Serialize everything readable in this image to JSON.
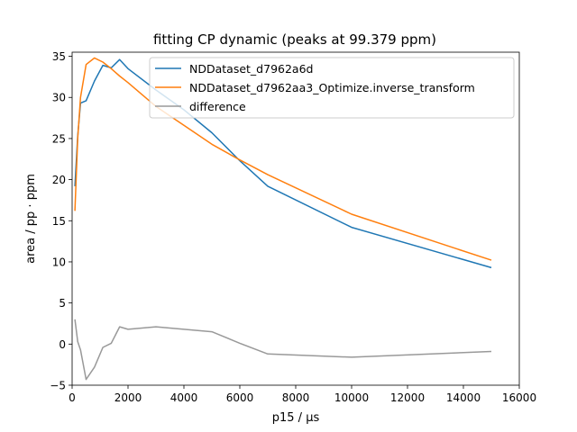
{
  "chart_data": {
    "type": "line",
    "title": "fitting CP dynamic (peaks at 99.379 ppm)",
    "xlabel": "p15 / µs",
    "ylabel": "area / pp · ppm",
    "xlim": [
      0,
      16000
    ],
    "ylim": [
      -5,
      35.5
    ],
    "xticks": [
      0,
      2000,
      4000,
      6000,
      8000,
      10000,
      12000,
      14000,
      16000
    ],
    "yticks": [
      -5,
      0,
      5,
      10,
      15,
      20,
      25,
      30,
      35
    ],
    "xtick_labels": [
      "0",
      "2000",
      "4000",
      "6000",
      "8000",
      "10000",
      "12000",
      "14000",
      "16000"
    ],
    "ytick_labels": [
      "−5",
      "0",
      "5",
      "10",
      "15",
      "20",
      "25",
      "30",
      "35"
    ],
    "grid": false,
    "legend_position": "top-right",
    "series": [
      {
        "name": "NDDataset_d7962a6d",
        "color": "#1f77b4",
        "x": [
          100,
          200,
          300,
          500,
          800,
          1100,
          1400,
          1700,
          2000,
          3000,
          4000,
          5000,
          6000,
          7000,
          10000,
          15000
        ],
        "y": [
          19.2,
          25.3,
          29.3,
          29.6,
          32.0,
          33.9,
          33.6,
          34.6,
          33.5,
          30.9,
          28.5,
          25.7,
          22.3,
          19.2,
          14.2,
          9.3
        ]
      },
      {
        "name": "NDDataset_d7962aa3_Optimize.inverse_transform",
        "color": "#ff7f0e",
        "x": [
          100,
          200,
          300,
          500,
          800,
          1100,
          1400,
          1700,
          2000,
          3000,
          4000,
          5000,
          6000,
          7000,
          10000,
          15000
        ],
        "y": [
          16.2,
          25.0,
          30.0,
          34.0,
          34.8,
          34.3,
          33.5,
          32.6,
          31.8,
          28.9,
          26.6,
          24.3,
          22.4,
          20.6,
          15.8,
          10.2
        ]
      },
      {
        "name": "difference",
        "color": "#999999",
        "x": [
          100,
          200,
          300,
          500,
          800,
          1100,
          1400,
          1700,
          2000,
          3000,
          4000,
          5000,
          6000,
          7000,
          10000,
          15000
        ],
        "y": [
          3.0,
          0.3,
          -0.7,
          -4.3,
          -2.8,
          -0.4,
          0.1,
          2.1,
          1.8,
          2.1,
          1.8,
          1.5,
          0.1,
          -1.2,
          -1.6,
          -0.9
        ]
      }
    ]
  }
}
